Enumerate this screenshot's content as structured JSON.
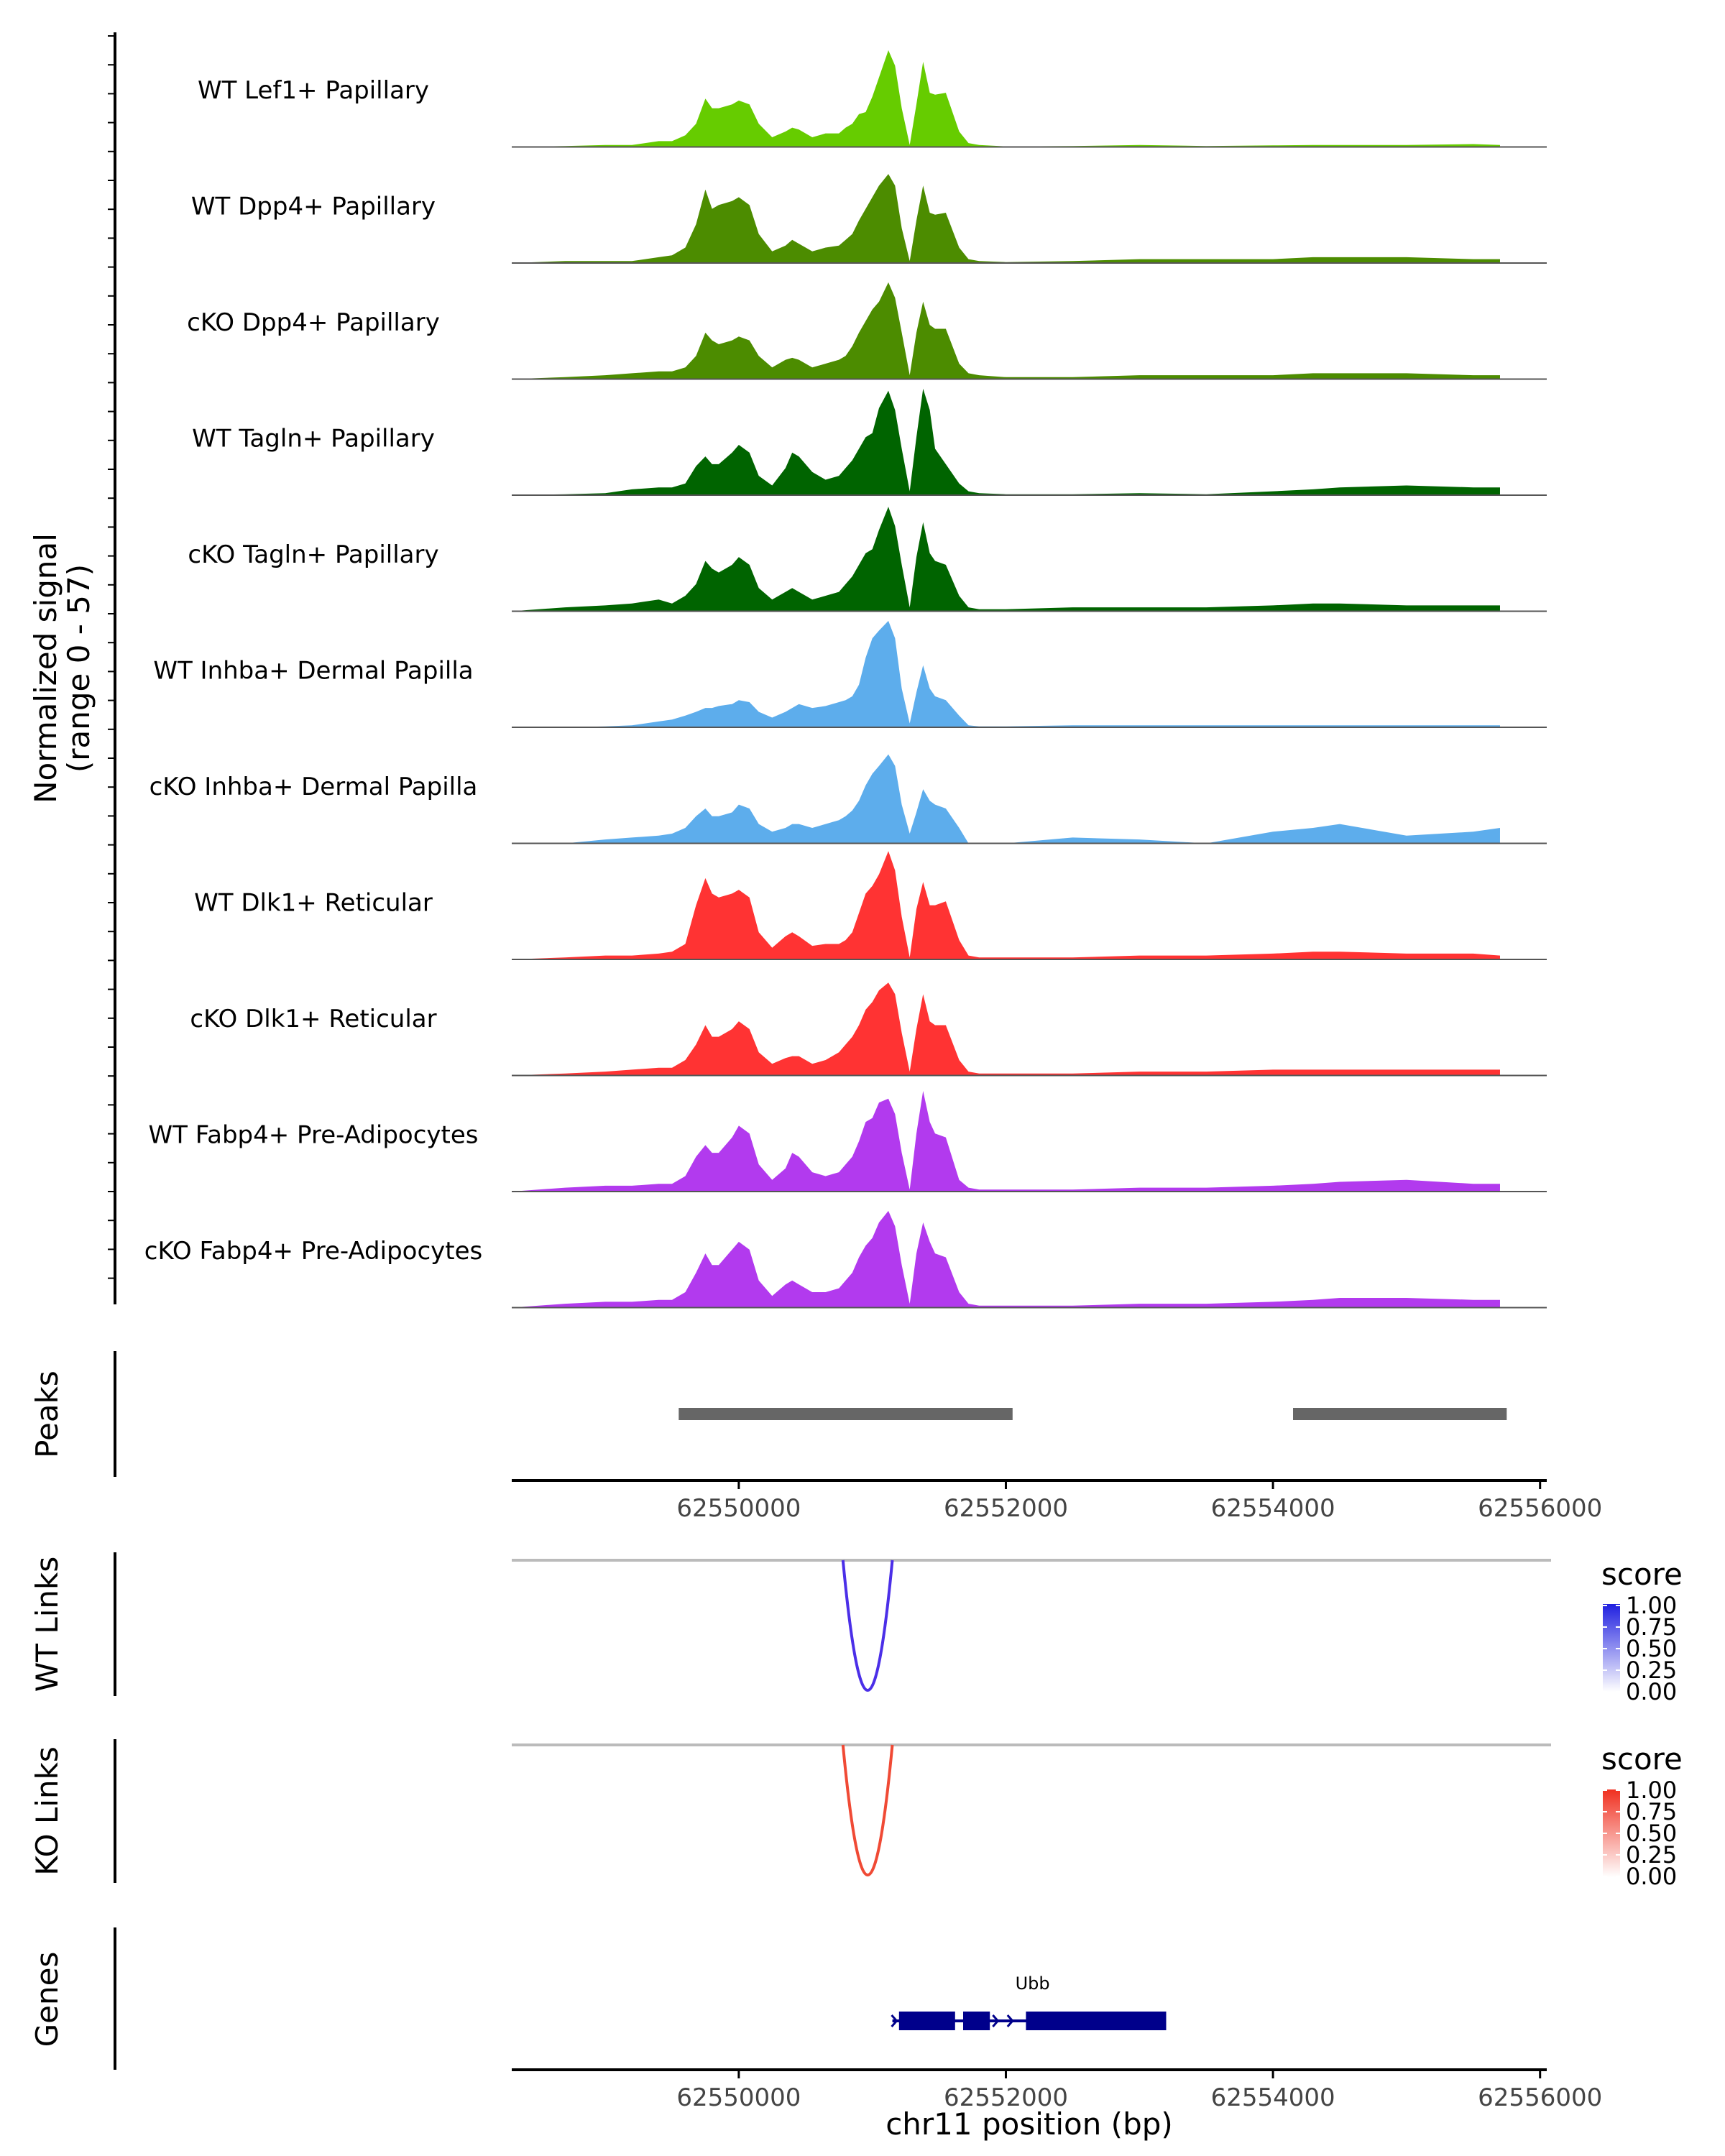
{
  "chart_data": {
    "type": "area",
    "title": "",
    "xlabel": "chr11 position (bp)",
    "xlim": [
      62548300,
      62556050
    ],
    "x_ticks": [
      62550000,
      62552000,
      62554000,
      62556000
    ],
    "x_tick_labels": [
      "62550000",
      "62552000",
      "62554000",
      "62556000"
    ],
    "coverage": {
      "ylabel_line1": "Normalized signal",
      "ylabel_line2": "(range 0 - 57)",
      "ylim": [
        0,
        57
      ],
      "x": [
        62548300,
        62548700,
        62549000,
        62549200,
        62549400,
        62549500,
        62549600,
        62549680,
        62549750,
        62549800,
        62549850,
        62549950,
        62550000,
        62550080,
        62550150,
        62550250,
        62550350,
        62550400,
        62550450,
        62550550,
        62550650,
        62550750,
        62550800,
        62550850,
        62550900,
        62550950,
        62551000,
        62551050,
        62551120,
        62551170,
        62551220,
        62551280,
        62551330,
        62551380,
        62551430,
        62551470,
        62551550,
        62551650,
        62551720,
        62551800,
        62552000,
        62552500,
        62553000,
        62553500,
        62554000,
        62554300,
        62554500,
        62555000,
        62555500,
        62555700
      ],
      "tracks": [
        {
          "label": "WT Lef1+ Papillary",
          "color": "#66CC00",
          "values": [
            0,
            0.5,
            1,
            1,
            3,
            3,
            6,
            12,
            25,
            20,
            20,
            22,
            24,
            22,
            12,
            5,
            8,
            10,
            9,
            5,
            7,
            7,
            10,
            12,
            17,
            18,
            26,
            36,
            50,
            42,
            20,
            1,
            22,
            44,
            28,
            27,
            28,
            8,
            2,
            1,
            0.3,
            0.5,
            1,
            0.5,
            0.8,
            1,
            1,
            1,
            1.5,
            1
          ]
        },
        {
          "label": "WT Dpp4+ Papillary",
          "color": "#4C8C00",
          "values": [
            0,
            1,
            1,
            1,
            3,
            4,
            8,
            20,
            38,
            28,
            30,
            32,
            34,
            30,
            15,
            6,
            9,
            12,
            10,
            6,
            8,
            9,
            12,
            15,
            22,
            28,
            34,
            40,
            46,
            40,
            18,
            1,
            22,
            40,
            26,
            25,
            26,
            8,
            2,
            1,
            0.5,
            1,
            2,
            2,
            2,
            3,
            3,
            3,
            2,
            2
          ]
        },
        {
          "label": "cKO Dpp4+ Papillary",
          "color": "#4C8C00",
          "values": [
            0,
            1,
            2,
            3,
            4,
            4,
            6,
            12,
            24,
            20,
            18,
            20,
            22,
            20,
            12,
            6,
            10,
            11,
            10,
            6,
            8,
            10,
            12,
            17,
            24,
            30,
            36,
            40,
            50,
            42,
            24,
            2,
            24,
            40,
            28,
            26,
            26,
            8,
            3,
            2,
            1,
            1,
            2,
            2,
            2,
            3,
            3,
            3,
            2,
            2
          ]
        },
        {
          "label": "WT Tagln+ Papillary",
          "color": "#006400",
          "values": [
            0,
            0.5,
            1,
            3,
            4,
            4,
            6,
            15,
            20,
            16,
            16,
            22,
            26,
            22,
            10,
            5,
            14,
            22,
            20,
            12,
            8,
            10,
            14,
            18,
            24,
            30,
            32,
            45,
            54,
            44,
            24,
            2,
            30,
            55,
            44,
            24,
            16,
            6,
            2,
            1,
            0.5,
            0.5,
            1,
            0.5,
            2,
            3,
            4,
            5,
            4,
            4
          ]
        },
        {
          "label": "cKO Tagln+ Papillary",
          "color": "#006400",
          "values": [
            0,
            2,
            3,
            4,
            6,
            4,
            8,
            14,
            26,
            22,
            20,
            24,
            28,
            24,
            12,
            6,
            10,
            12,
            10,
            6,
            8,
            10,
            14,
            18,
            24,
            30,
            32,
            42,
            54,
            44,
            24,
            2,
            28,
            46,
            30,
            26,
            24,
            8,
            2,
            1,
            1,
            2,
            2,
            2,
            3,
            4,
            4,
            3,
            3,
            3
          ]
        },
        {
          "label": "WT Inhba+ Dermal Papilla",
          "color": "#5DADEC",
          "values": [
            0,
            0,
            0.5,
            1,
            3,
            4,
            6,
            8,
            10,
            10,
            11,
            12,
            14,
            13,
            8,
            5,
            8,
            10,
            12,
            10,
            11,
            13,
            14,
            16,
            22,
            36,
            46,
            50,
            55,
            46,
            20,
            2,
            18,
            32,
            20,
            16,
            14,
            6,
            1,
            0.5,
            0.5,
            1,
            1,
            1,
            1,
            1,
            1,
            1,
            1,
            1
          ]
        },
        {
          "label": "cKO Inhba+ Dermal Papilla",
          "color": "#5DADEC",
          "values": [
            0,
            0,
            2,
            3,
            4,
            5,
            8,
            14,
            18,
            14,
            14,
            16,
            20,
            18,
            10,
            6,
            8,
            10,
            10,
            8,
            10,
            12,
            14,
            17,
            22,
            30,
            36,
            40,
            46,
            40,
            20,
            5,
            16,
            28,
            22,
            20,
            18,
            8,
            0,
            0,
            0,
            3,
            2,
            0,
            6,
            8,
            10,
            4,
            6,
            8
          ]
        },
        {
          "label": "WT Dlk1+ Reticular",
          "color": "#FF3333",
          "values": [
            0,
            1,
            2,
            2,
            3,
            4,
            8,
            28,
            42,
            34,
            32,
            34,
            36,
            32,
            14,
            6,
            12,
            14,
            12,
            7,
            8,
            8,
            10,
            14,
            24,
            34,
            38,
            44,
            56,
            46,
            22,
            1,
            26,
            40,
            28,
            28,
            30,
            10,
            2,
            1,
            1,
            1,
            2,
            2,
            3,
            4,
            4,
            3,
            3,
            2
          ]
        },
        {
          "label": "cKO Dlk1+ Reticular",
          "color": "#FF3333",
          "values": [
            0,
            1,
            2,
            3,
            4,
            4,
            8,
            16,
            26,
            20,
            20,
            24,
            28,
            24,
            12,
            6,
            9,
            10,
            10,
            6,
            8,
            12,
            16,
            20,
            26,
            34,
            38,
            44,
            48,
            42,
            22,
            2,
            24,
            42,
            28,
            26,
            26,
            8,
            2,
            1,
            1,
            1,
            2,
            2,
            3,
            3,
            3,
            3,
            3,
            3
          ]
        },
        {
          "label": "WT Fabp4+ Pre-Adipocytes",
          "color": "#B23AEE",
          "values": [
            0,
            2,
            3,
            3,
            4,
            4,
            8,
            18,
            24,
            20,
            20,
            28,
            34,
            30,
            14,
            6,
            12,
            20,
            18,
            10,
            8,
            10,
            14,
            18,
            26,
            36,
            38,
            46,
            48,
            40,
            20,
            1,
            30,
            52,
            36,
            30,
            28,
            6,
            2,
            1,
            1,
            1,
            2,
            2,
            3,
            4,
            5,
            6,
            4,
            4
          ]
        },
        {
          "label": "cKO Fabp4+ Pre-Adipocytes",
          "color": "#B23AEE",
          "values": [
            0,
            2,
            3,
            3,
            4,
            4,
            8,
            18,
            28,
            22,
            22,
            30,
            34,
            30,
            14,
            6,
            12,
            14,
            12,
            8,
            8,
            10,
            14,
            18,
            26,
            32,
            36,
            44,
            50,
            42,
            22,
            2,
            28,
            44,
            34,
            28,
            26,
            8,
            2,
            1,
            1,
            1,
            2,
            2,
            3,
            4,
            5,
            5,
            4,
            4
          ]
        }
      ]
    },
    "peaks": {
      "label": "Peaks",
      "color": "#666666",
      "regions": [
        [
          62549550,
          62552050
        ],
        [
          62554150,
          62555750
        ]
      ]
    },
    "wt_links": {
      "label": "WT Links",
      "color": "#4B2FE8",
      "arcs": [
        {
          "start": 62550780,
          "end": 62551150,
          "score": 0.9
        }
      ],
      "legend_title": "score",
      "legend_ticks": [
        "1.00",
        "0.75",
        "0.50",
        "0.25",
        "0.00"
      ],
      "legend_high": "#2020E0",
      "legend_low": "#FFFFFF"
    },
    "ko_links": {
      "label": "KO Links",
      "color": "#F04A35",
      "arcs": [
        {
          "start": 62550780,
          "end": 62551150,
          "score": 0.9
        }
      ],
      "legend_title": "score",
      "legend_ticks": [
        "1.00",
        "0.75",
        "0.50",
        "0.25",
        "0.00"
      ],
      "legend_high": "#F03020",
      "legend_low": "#FFFFFF"
    },
    "genes": {
      "label": "Genes",
      "color": "#00008B",
      "gene_name": "Ubb",
      "line": [
        62551150,
        62553200
      ],
      "exons": [
        [
          62551200,
          62551620
        ],
        [
          62551680,
          62551880
        ],
        [
          62552150,
          62553200
        ]
      ]
    }
  }
}
